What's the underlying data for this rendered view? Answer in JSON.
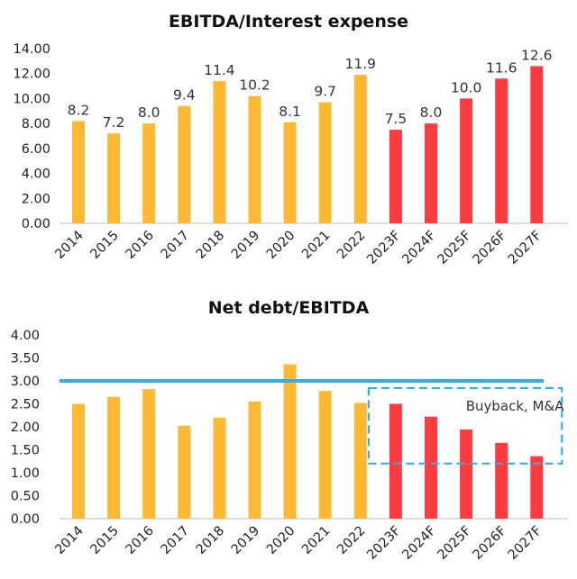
{
  "colors": {
    "actual": "#FFB833",
    "forecast": "#FF3B3F",
    "threshold": "#33AEE8",
    "axis": "#BBBBBB"
  },
  "chart_data": [
    {
      "type": "bar",
      "title": "EBITDA/Interest expense",
      "categories": [
        "2014",
        "2015",
        "2016",
        "2017",
        "2018",
        "2019",
        "2020",
        "2021",
        "2022",
        "2023F",
        "2024F",
        "2025F",
        "2026F",
        "2027F"
      ],
      "values": [
        8.2,
        7.2,
        8.0,
        9.4,
        11.4,
        10.2,
        8.1,
        9.7,
        11.9,
        7.5,
        8.0,
        10.0,
        11.6,
        12.6
      ],
      "labels": [
        "8.2",
        "7.2",
        "8.0",
        "9.4",
        "11.4",
        "10.2",
        "8.1",
        "9.7",
        "11.9",
        "7.5",
        "8.0",
        "10.0",
        "11.6",
        "12.6"
      ],
      "forecast_from": 9,
      "ylim": [
        0,
        14
      ],
      "yticks": [
        "0.00",
        "2.00",
        "4.00",
        "6.00",
        "8.00",
        "10.00",
        "12.00",
        "14.00"
      ],
      "xlabel": "",
      "ylabel": "",
      "grid": false
    },
    {
      "type": "bar",
      "title": "Net debt/EBITDA",
      "categories": [
        "2014",
        "2015",
        "2016",
        "2017",
        "2018",
        "2019",
        "2020",
        "2021",
        "2022",
        "2023F",
        "2024F",
        "2025F",
        "2026F",
        "2027F"
      ],
      "values": [
        2.5,
        2.65,
        2.82,
        2.02,
        2.2,
        2.55,
        3.36,
        2.78,
        2.52,
        2.5,
        2.22,
        1.94,
        1.65,
        1.36
      ],
      "forecast_from": 9,
      "ylim": [
        0,
        4
      ],
      "yticks": [
        "0.00",
        "0.50",
        "1.00",
        "1.50",
        "2.00",
        "2.50",
        "3.00",
        "3.50",
        "4.00"
      ],
      "threshold": 3.0,
      "annotation": {
        "text": "Buyback, M&A",
        "y_range": [
          1.2,
          3.0
        ],
        "from_category": "2023F",
        "to_category": "2027F"
      },
      "xlabel": "",
      "ylabel": "",
      "grid": false
    }
  ]
}
